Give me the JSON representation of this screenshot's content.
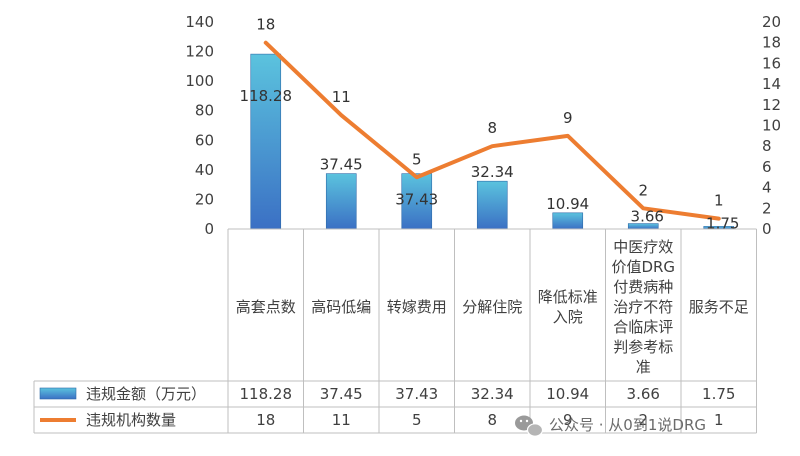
{
  "chart_data": {
    "type": "bar",
    "categories": [
      [
        "高套点数"
      ],
      [
        "高码低编"
      ],
      [
        "转嫁费用"
      ],
      [
        "分解住院"
      ],
      [
        "降低标准",
        "入院"
      ],
      [
        "中医疗效",
        "价值DRG",
        "付费病种",
        "治疗不符",
        "合临床评",
        "判参考标",
        "准"
      ],
      [
        "服务不足"
      ]
    ],
    "series": [
      {
        "name": "违规金额（万元）",
        "type": "bar",
        "axis": "left",
        "values": [
          118.28,
          37.45,
          37.43,
          32.34,
          10.94,
          3.66,
          1.75
        ],
        "labels": [
          "118.28",
          "37.45",
          "37.43",
          "32.34",
          "10.94",
          "3.66",
          "1.75"
        ]
      },
      {
        "name": "违规机构数量",
        "type": "line",
        "axis": "right",
        "values": [
          18,
          11,
          5,
          8,
          9,
          2,
          1
        ],
        "labels": [
          "18",
          "11",
          "5",
          "8",
          "9",
          "2",
          "1"
        ]
      }
    ],
    "y_left": {
      "ylim": [
        0,
        140
      ],
      "ticks": [
        "0",
        "20",
        "40",
        "60",
        "80",
        "100",
        "120",
        "140"
      ]
    },
    "y_right": {
      "ylim": [
        0,
        20
      ],
      "ticks": [
        "0",
        "2",
        "4",
        "6",
        "8",
        "10",
        "12",
        "14",
        "16",
        "18",
        "20"
      ]
    },
    "grid": false,
    "legend": "data-table-below"
  },
  "colors": {
    "bar_top": "#5BC3DE",
    "bar_bottom": "#3B70C4",
    "bar_edge": "#2E6AA8",
    "line": "#ED7D31",
    "table_border": "#BFBFBF",
    "axis_text": "#404040"
  },
  "watermark": {
    "icon": "wechat-icon",
    "text": "公众号 · 从0到1说DRG"
  }
}
